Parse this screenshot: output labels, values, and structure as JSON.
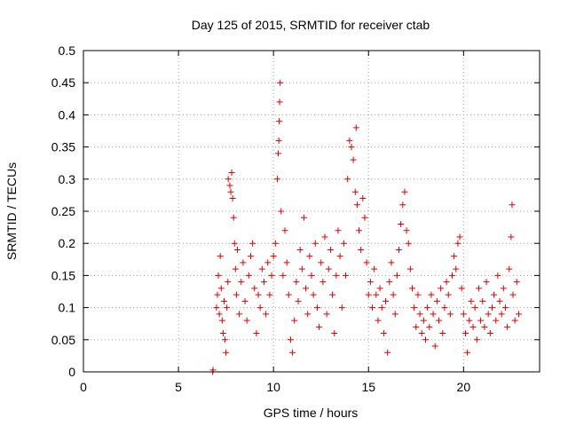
{
  "chart_data": {
    "type": "scatter",
    "title": "Day 125 of 2015, SRMTID for receiver ctab",
    "xlabel": "GPS time / hours",
    "ylabel": "SRMTID / TECUs",
    "xlim": [
      0,
      24
    ],
    "ylim": [
      0,
      0.5
    ],
    "xticks": [
      0,
      5,
      10,
      15,
      20
    ],
    "xtick_labels": [
      "0",
      "5",
      "10",
      "15",
      "20"
    ],
    "yticks": [
      0,
      0.05,
      0.1,
      0.15,
      0.2,
      0.25,
      0.3,
      0.35,
      0.4,
      0.45,
      0.5
    ],
    "ytick_labels": [
      "0",
      "0.05",
      "0.1",
      "0.15",
      "0.2",
      "0.25",
      "0.3",
      "0.35",
      "0.4",
      "0.45",
      "0.5"
    ],
    "grid": true,
    "marker": "plus",
    "color": "#e00000",
    "series": [
      {
        "name": "SRMTID",
        "points": [
          [
            6.8,
            0.0
          ],
          [
            6.82,
            0.003
          ],
          [
            7.0,
            0.1
          ],
          [
            7.05,
            0.12
          ],
          [
            7.1,
            0.15
          ],
          [
            7.15,
            0.09
          ],
          [
            7.2,
            0.18
          ],
          [
            7.25,
            0.13
          ],
          [
            7.3,
            0.08
          ],
          [
            7.35,
            0.06
          ],
          [
            7.4,
            0.11
          ],
          [
            7.45,
            0.05
          ],
          [
            7.5,
            0.03
          ],
          [
            7.55,
            0.1
          ],
          [
            7.6,
            0.14
          ],
          [
            7.62,
            0.3
          ],
          [
            7.7,
            0.29
          ],
          [
            7.75,
            0.28
          ],
          [
            7.8,
            0.31
          ],
          [
            7.85,
            0.27
          ],
          [
            7.9,
            0.24
          ],
          [
            7.95,
            0.2
          ],
          [
            8.0,
            0.16
          ],
          [
            8.05,
            0.12
          ],
          [
            8.1,
            0.19
          ],
          [
            8.2,
            0.09
          ],
          [
            8.3,
            0.14
          ],
          [
            8.4,
            0.17
          ],
          [
            8.5,
            0.11
          ],
          [
            8.6,
            0.08
          ],
          [
            8.7,
            0.15
          ],
          [
            8.8,
            0.18
          ],
          [
            8.9,
            0.2
          ],
          [
            9.0,
            0.13
          ],
          [
            9.1,
            0.06
          ],
          [
            9.2,
            0.12
          ],
          [
            9.3,
            0.1
          ],
          [
            9.4,
            0.16
          ],
          [
            9.5,
            0.14
          ],
          [
            9.6,
            0.09
          ],
          [
            9.7,
            0.17
          ],
          [
            9.8,
            0.12
          ],
          [
            9.9,
            0.15
          ],
          [
            10.0,
            0.18
          ],
          [
            10.1,
            0.2
          ],
          [
            10.2,
            0.3
          ],
          [
            10.25,
            0.34
          ],
          [
            10.28,
            0.36
          ],
          [
            10.3,
            0.39
          ],
          [
            10.32,
            0.42
          ],
          [
            10.35,
            0.45
          ],
          [
            10.4,
            0.25
          ],
          [
            10.5,
            0.15
          ],
          [
            10.6,
            0.22
          ],
          [
            10.7,
            0.17
          ],
          [
            10.8,
            0.12
          ],
          [
            10.9,
            0.05
          ],
          [
            11.0,
            0.03
          ],
          [
            11.1,
            0.08
          ],
          [
            11.2,
            0.14
          ],
          [
            11.3,
            0.11
          ],
          [
            11.4,
            0.19
          ],
          [
            11.5,
            0.16
          ],
          [
            11.6,
            0.24
          ],
          [
            11.7,
            0.13
          ],
          [
            11.8,
            0.09
          ],
          [
            11.9,
            0.18
          ],
          [
            12.0,
            0.15
          ],
          [
            12.1,
            0.12
          ],
          [
            12.2,
            0.2
          ],
          [
            12.3,
            0.1
          ],
          [
            12.4,
            0.07
          ],
          [
            12.5,
            0.17
          ],
          [
            12.6,
            0.14
          ],
          [
            12.7,
            0.21
          ],
          [
            12.8,
            0.09
          ],
          [
            12.9,
            0.16
          ],
          [
            13.0,
            0.19
          ],
          [
            13.1,
            0.12
          ],
          [
            13.2,
            0.06
          ],
          [
            13.3,
            0.15
          ],
          [
            13.4,
            0.22
          ],
          [
            13.5,
            0.18
          ],
          [
            13.6,
            0.1
          ],
          [
            13.7,
            0.2
          ],
          [
            13.8,
            0.15
          ],
          [
            13.9,
            0.3
          ],
          [
            14.0,
            0.36
          ],
          [
            14.1,
            0.35
          ],
          [
            14.2,
            0.33
          ],
          [
            14.3,
            0.28
          ],
          [
            14.35,
            0.38
          ],
          [
            14.4,
            0.26
          ],
          [
            14.5,
            0.22
          ],
          [
            14.6,
            0.19
          ],
          [
            14.7,
            0.27
          ],
          [
            14.8,
            0.24
          ],
          [
            14.9,
            0.17
          ],
          [
            15.0,
            0.12
          ],
          [
            15.1,
            0.14
          ],
          [
            15.2,
            0.1
          ],
          [
            15.3,
            0.16
          ],
          [
            15.4,
            0.12
          ],
          [
            15.5,
            0.08
          ],
          [
            15.6,
            0.13
          ],
          [
            15.7,
            0.1
          ],
          [
            15.8,
            0.06
          ],
          [
            15.9,
            0.11
          ],
          [
            16.0,
            0.03
          ],
          [
            16.1,
            0.14
          ],
          [
            16.2,
            0.17
          ],
          [
            16.3,
            0.12
          ],
          [
            16.4,
            0.09
          ],
          [
            16.5,
            0.15
          ],
          [
            16.6,
            0.19
          ],
          [
            16.7,
            0.23
          ],
          [
            16.8,
            0.26
          ],
          [
            16.9,
            0.28
          ],
          [
            17.0,
            0.22
          ],
          [
            17.1,
            0.2
          ],
          [
            17.2,
            0.16
          ],
          [
            17.3,
            0.13
          ],
          [
            17.4,
            0.1
          ],
          [
            17.5,
            0.07
          ],
          [
            17.6,
            0.12
          ],
          [
            17.7,
            0.09
          ],
          [
            17.8,
            0.06
          ],
          [
            17.9,
            0.08
          ],
          [
            18.0,
            0.05
          ],
          [
            18.1,
            0.1
          ],
          [
            18.2,
            0.07
          ],
          [
            18.3,
            0.12
          ],
          [
            18.4,
            0.09
          ],
          [
            18.5,
            0.04
          ],
          [
            18.6,
            0.11
          ],
          [
            18.7,
            0.08
          ],
          [
            18.8,
            0.13
          ],
          [
            18.9,
            0.06
          ],
          [
            19.0,
            0.1
          ],
          [
            19.1,
            0.14
          ],
          [
            19.2,
            0.12
          ],
          [
            19.3,
            0.09
          ],
          [
            19.4,
            0.15
          ],
          [
            19.5,
            0.18
          ],
          [
            19.6,
            0.16
          ],
          [
            19.7,
            0.2
          ],
          [
            19.8,
            0.21
          ],
          [
            19.9,
            0.13
          ],
          [
            20.0,
            0.09
          ],
          [
            20.1,
            0.06
          ],
          [
            20.2,
            0.03
          ],
          [
            20.3,
            0.08
          ],
          [
            20.4,
            0.11
          ],
          [
            20.5,
            0.07
          ],
          [
            20.6,
            0.1
          ],
          [
            20.7,
            0.05
          ],
          [
            20.8,
            0.13
          ],
          [
            20.9,
            0.08
          ],
          [
            21.0,
            0.11
          ],
          [
            21.1,
            0.07
          ],
          [
            21.2,
            0.14
          ],
          [
            21.3,
            0.09
          ],
          [
            21.4,
            0.06
          ],
          [
            21.5,
            0.1
          ],
          [
            21.6,
            0.12
          ],
          [
            21.7,
            0.08
          ],
          [
            21.8,
            0.15
          ],
          [
            21.9,
            0.11
          ],
          [
            22.0,
            0.09
          ],
          [
            22.1,
            0.13
          ],
          [
            22.2,
            0.1
          ],
          [
            22.3,
            0.07
          ],
          [
            22.4,
            0.16
          ],
          [
            22.5,
            0.21
          ],
          [
            22.55,
            0.26
          ],
          [
            22.6,
            0.12
          ],
          [
            22.7,
            0.08
          ],
          [
            22.8,
            0.14
          ],
          [
            22.9,
            0.09
          ]
        ]
      }
    ]
  }
}
